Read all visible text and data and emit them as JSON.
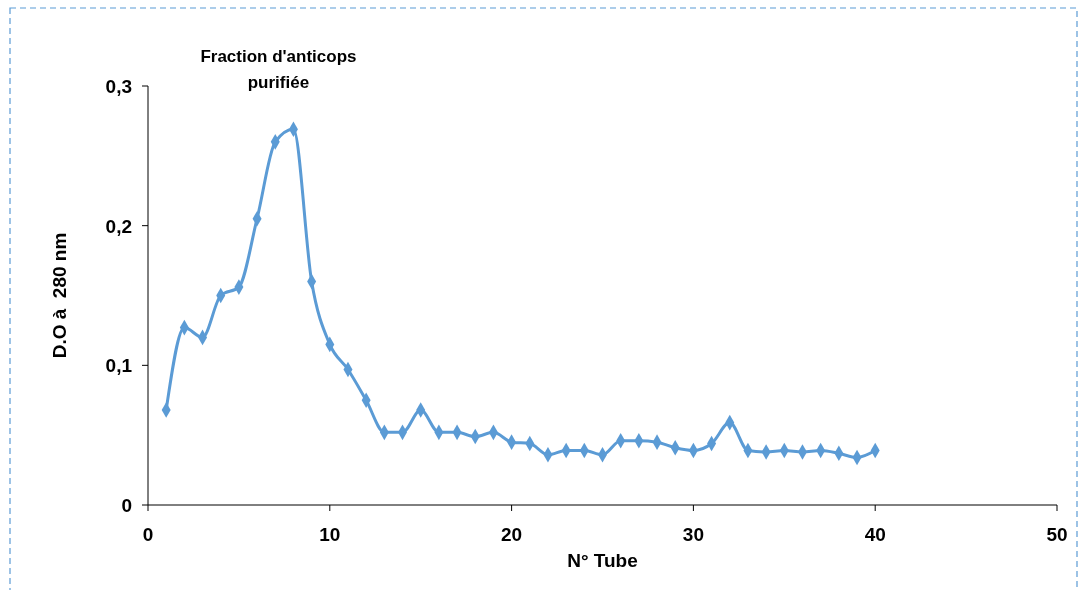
{
  "chart_data": {
    "type": "line",
    "xlabel": "N° Tube",
    "ylabel": "D.O à  280 nm",
    "x": [
      1,
      2,
      3,
      4,
      5,
      6,
      7,
      8,
      9,
      10,
      11,
      12,
      13,
      14,
      15,
      16,
      17,
      18,
      19,
      20,
      21,
      22,
      23,
      24,
      25,
      26,
      27,
      28,
      29,
      30,
      31,
      32,
      33,
      34,
      35,
      36,
      37,
      38,
      39,
      40
    ],
    "series": [
      {
        "color": "#5b9bd5",
        "values": [
          0.068,
          0.127,
          0.12,
          0.15,
          0.156,
          0.205,
          0.26,
          0.269,
          0.16,
          0.115,
          0.097,
          0.075,
          0.052,
          0.052,
          0.068,
          0.052,
          0.052,
          0.049,
          0.052,
          0.045,
          0.044,
          0.036,
          0.039,
          0.039,
          0.036,
          0.046,
          0.046,
          0.045,
          0.041,
          0.039,
          0.044,
          0.059,
          0.039,
          0.038,
          0.039,
          0.038,
          0.039,
          0.037,
          0.034,
          0.039
        ]
      }
    ],
    "xlim": [
      0,
      50
    ],
    "xticks": [
      0,
      10,
      20,
      30,
      40,
      50
    ],
    "ylim": [
      0,
      0.3
    ],
    "yticks": [
      0,
      {
        "value": 0.1,
        "label": "0,1"
      },
      {
        "value": 0.2,
        "label": "0,2"
      },
      {
        "value": 0.3,
        "label": "0,3"
      }
    ],
    "marker": "diamond",
    "line_style": "solid",
    "annotations": [
      {
        "text": "Fraction d'anticops purifiée",
        "x": 8,
        "y": 0.269
      }
    ]
  }
}
